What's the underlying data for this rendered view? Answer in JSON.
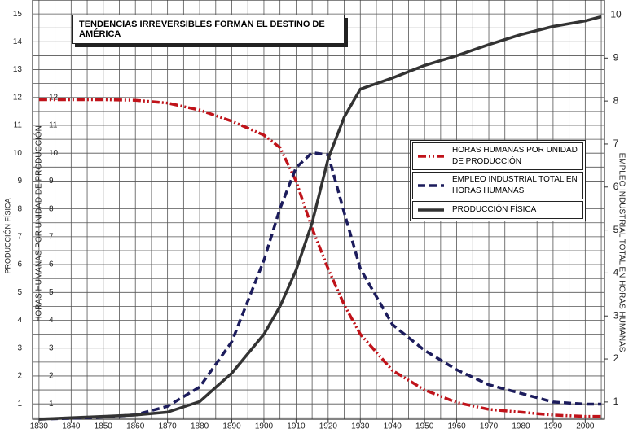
{
  "chart_data": {
    "type": "line",
    "title": "TENDENCIAS IRREVERSIBLES FORMAN EL DESTINO DE AMÉRICA",
    "ylabel": "PRODUCCIÓN FÍSICA",
    "ylabel_inner": "HORAS HUMANAS POR UNIDAD DE PRODUCCIÓN",
    "y2label": "EMPLEO INDUSTRIAL TOTAL EN HORAS HUMANAS",
    "x": [
      1830,
      1840,
      1850,
      1860,
      1870,
      1880,
      1890,
      1900,
      1905,
      1910,
      1915,
      1920,
      1925,
      1930,
      1940,
      1950,
      1960,
      1970,
      1980,
      1990,
      2000,
      2005
    ],
    "xlim": [
      1828,
      2006
    ],
    "xticks": [
      1830,
      1840,
      1850,
      1860,
      1870,
      1880,
      1890,
      1900,
      1910,
      1920,
      1930,
      1940,
      1950,
      1960,
      1970,
      1980,
      1990,
      2000
    ],
    "ylim": [
      0.45,
      15.5
    ],
    "yticks": [
      1,
      2,
      3,
      4,
      5,
      6,
      7,
      8,
      9,
      10,
      11,
      12,
      13,
      14,
      15
    ],
    "yticks_inner": [
      1,
      2,
      3,
      4,
      5,
      6,
      7,
      8,
      9,
      10,
      11,
      12
    ],
    "y2lim": [
      0.6,
      10.35
    ],
    "y2ticks": [
      1,
      2,
      3,
      4,
      5,
      6,
      7,
      8,
      9,
      10
    ],
    "grid": true,
    "series": [
      {
        "name": "HORAS HUMANAS POR UNIDAD DE PRODUCCIÓN",
        "color": "#c0131a",
        "dash": "10 3 2 3 2 3",
        "values": [
          11.92,
          11.92,
          11.92,
          11.9,
          11.8,
          11.55,
          11.15,
          10.65,
          10.2,
          9.0,
          7.3,
          5.85,
          4.55,
          3.5,
          2.2,
          1.5,
          1.05,
          0.8,
          0.7,
          0.6,
          0.55,
          0.55
        ]
      },
      {
        "name": "EMPLEO INDUSTRIAL TOTAL EN HORAS HUMANAS",
        "color": "#1c1c5c",
        "dash": "9 5",
        "axis": "y2",
        "values": [
          0.6,
          0.62,
          0.65,
          0.7,
          0.9,
          1.35,
          2.4,
          4.3,
          5.5,
          6.45,
          6.8,
          6.75,
          5.4,
          4.1,
          2.8,
          2.2,
          1.75,
          1.4,
          1.2,
          1.0,
          0.95,
          0.95
        ]
      },
      {
        "name": "PRODUCCIÓN FÍSICA",
        "color": "#333333",
        "dash": "none",
        "values": [
          0.45,
          0.5,
          0.55,
          0.6,
          0.7,
          1.08,
          2.1,
          3.5,
          4.5,
          5.8,
          7.5,
          9.8,
          11.3,
          12.3,
          12.7,
          13.15,
          13.5,
          13.9,
          14.26,
          14.55,
          14.75,
          14.9
        ]
      }
    ]
  }
}
